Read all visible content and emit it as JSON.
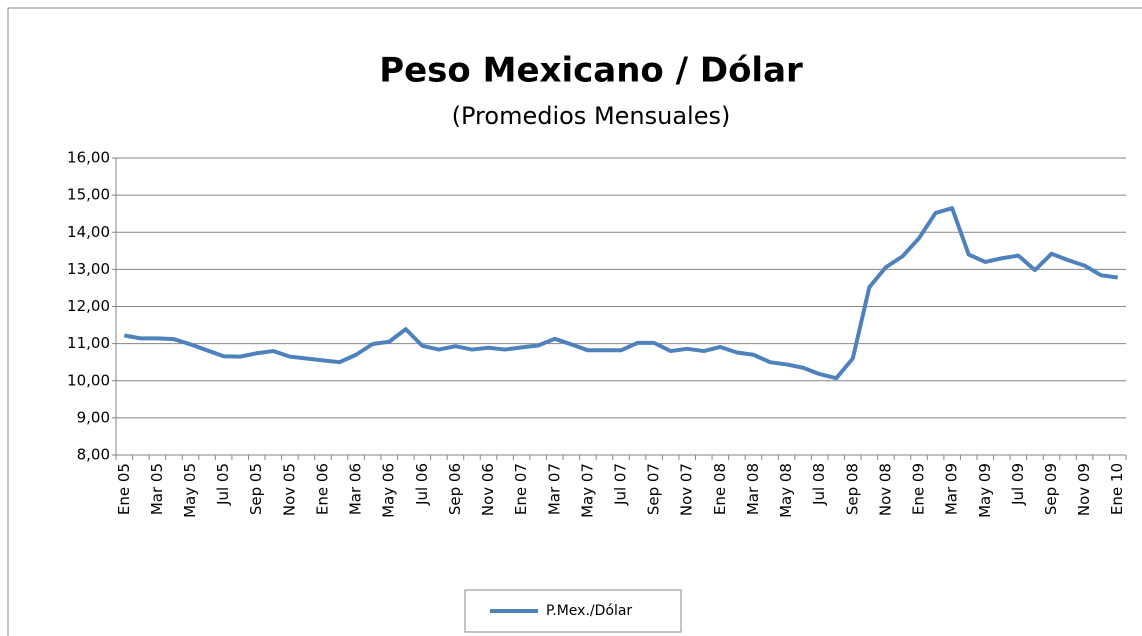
{
  "chart_data": {
    "type": "line",
    "title": "Peso Mexicano / Dólar",
    "subtitle": "(Promedios Mensuales)",
    "categories": [
      "Ene 05",
      null,
      "Mar 05",
      null,
      "May 05",
      null,
      "Jul 05",
      null,
      "Sep 05",
      null,
      "Nov 05",
      null,
      "Ene 06",
      null,
      "Mar 06",
      null,
      "May 06",
      null,
      "Jul 06",
      null,
      "Sep 06",
      null,
      "Nov 06",
      null,
      "Ene 07",
      null,
      "Mar 07",
      null,
      "May 07",
      null,
      "Jul 07",
      null,
      "Sep 07",
      null,
      "Nov 07",
      null,
      "Ene 08",
      null,
      "Mar 08",
      null,
      "May 08",
      null,
      "Jul 08",
      null,
      "Sep 08",
      null,
      "Nov 08",
      null,
      "Ene 09",
      null,
      "Mar 09",
      null,
      "May 09",
      null,
      "Jul 09",
      null,
      "Sep 09",
      null,
      "Nov 09",
      null,
      "Ene 10"
    ],
    "series": [
      {
        "name": "P.Mex./Dólar",
        "color": "#4f81bd",
        "values": [
          11.22,
          11.14,
          11.14,
          11.12,
          10.98,
          10.82,
          10.66,
          10.65,
          10.74,
          10.8,
          10.65,
          10.6,
          10.55,
          10.5,
          10.7,
          10.99,
          11.05,
          11.39,
          10.94,
          10.84,
          10.93,
          10.84,
          10.89,
          10.84,
          10.9,
          10.95,
          11.13,
          10.98,
          10.82,
          10.82,
          10.82,
          11.02,
          11.02,
          10.8,
          10.86,
          10.8,
          10.91,
          10.76,
          10.7,
          10.5,
          10.44,
          10.35,
          10.18,
          10.07,
          10.6,
          12.52,
          13.06,
          13.35,
          13.84,
          14.52,
          14.65,
          13.4,
          13.2,
          13.3,
          13.37,
          12.98,
          13.42,
          13.25,
          13.1,
          12.84,
          12.78
        ]
      }
    ],
    "ylim": [
      8,
      16
    ],
    "yticks": [
      {
        "value": 8,
        "label": "8,00"
      },
      {
        "value": 9,
        "label": "9,00"
      },
      {
        "value": 10,
        "label": "10,00"
      },
      {
        "value": 11,
        "label": "11,00"
      },
      {
        "value": 12,
        "label": "12,00"
      },
      {
        "value": 13,
        "label": "13,00"
      },
      {
        "value": 14,
        "label": "14,00"
      },
      {
        "value": 15,
        "label": "15,00"
      },
      {
        "value": 16,
        "label": "16,00"
      }
    ],
    "grid": true,
    "legend": "bottom"
  }
}
